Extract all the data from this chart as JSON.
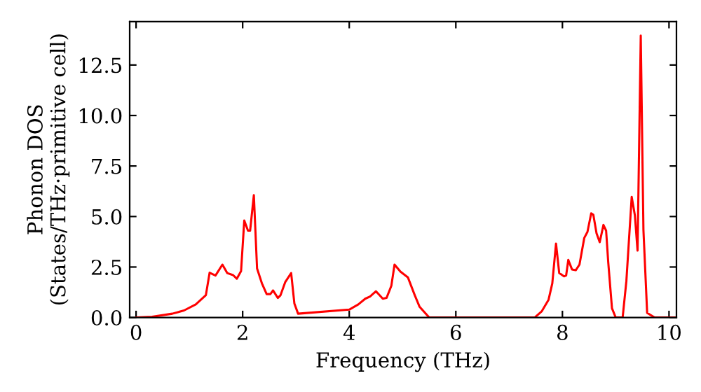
{
  "chart_data": {
    "type": "line",
    "xlabel": "Frequency (THz)",
    "ylabel": "Phonon DOS\n(States/THz·primitive cell)",
    "xlim": [
      -0.12,
      10.14
    ],
    "ylim": [
      0,
      14.65
    ],
    "xticks": [
      0,
      2,
      4,
      6,
      8,
      10
    ],
    "yticks": [
      {
        "value": 0,
        "label": "0.0"
      },
      2.5,
      {
        "value": 5,
        "label": "5.0"
      },
      7.5,
      {
        "value": 10,
        "label": "10.0"
      },
      12.5
    ],
    "grid": false,
    "legend": false,
    "marker": "none",
    "line_style": "solid",
    "series": [
      {
        "color": "#ff0000",
        "x": [
          0,
          0.3,
          0.68,
          0.9,
          1.12,
          1.31,
          1.38,
          1.49,
          1.62,
          1.71,
          1.82,
          1.89,
          1.97,
          2.03,
          2.1,
          2.14,
          2.21,
          2.27,
          2.36,
          2.45,
          2.52,
          2.57,
          2.66,
          2.71,
          2.8,
          2.91,
          2.97,
          3.04,
          4.0,
          4.17,
          4.3,
          4.39,
          4.5,
          4.63,
          4.7,
          4.79,
          4.85,
          4.96,
          5.1,
          5.23,
          5.32,
          5.5,
          7.48,
          7.61,
          7.74,
          7.81,
          7.88,
          7.94,
          8.03,
          8.07,
          8.11,
          8.18,
          8.25,
          8.32,
          8.41,
          8.47,
          8.54,
          8.58,
          8.64,
          8.7,
          8.77,
          8.82,
          8.86,
          8.93,
          9.0,
          9.13,
          9.2,
          9.3,
          9.36,
          9.41,
          9.47,
          9.52,
          9.59,
          9.73,
          10.12
        ],
        "values": [
          0,
          0.04,
          0.19,
          0.35,
          0.65,
          1.11,
          2.22,
          2.08,
          2.62,
          2.2,
          2.1,
          1.92,
          2.3,
          4.8,
          4.3,
          4.3,
          6.06,
          2.43,
          1.7,
          1.16,
          1.16,
          1.34,
          0.97,
          1.1,
          1.76,
          2.2,
          0.7,
          0.19,
          0.39,
          0.65,
          0.93,
          1.04,
          1.3,
          0.93,
          0.97,
          1.57,
          2.62,
          2.27,
          1.99,
          1.1,
          0.53,
          0,
          0,
          0.3,
          0.88,
          1.69,
          3.66,
          2.2,
          2.04,
          2.08,
          2.85,
          2.38,
          2.34,
          2.62,
          3.94,
          4.24,
          5.16,
          5.09,
          4.17,
          3.73,
          4.58,
          4.3,
          2.73,
          0.46,
          0,
          0,
          1.8,
          5.97,
          5.05,
          3.31,
          13.96,
          4.35,
          0.23,
          0,
          0
        ]
      }
    ]
  }
}
